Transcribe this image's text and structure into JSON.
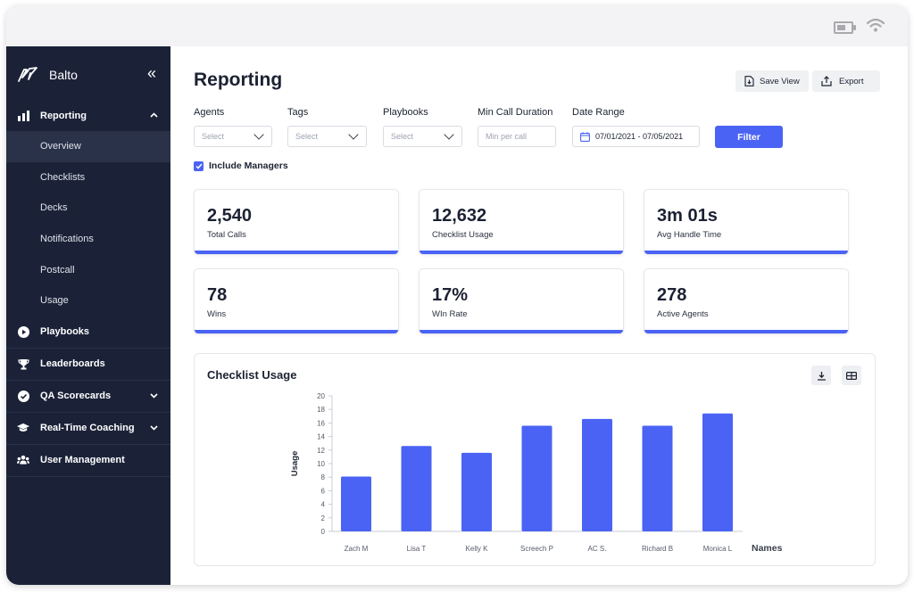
{
  "sidebar": {
    "brand": "Balto",
    "collapse_glyph": "«",
    "items": [
      {
        "label": "Reporting",
        "icon": "bar-chart-icon",
        "expanded": true
      },
      {
        "label": "Playbooks",
        "icon": "play-circle-icon"
      },
      {
        "label": "Leaderboards",
        "icon": "trophy-icon"
      },
      {
        "label": "QA Scorecards",
        "icon": "check-circle-icon",
        "has_chevron": true
      },
      {
        "label": "Real-Time Coaching",
        "icon": "graduation-cap-icon",
        "has_chevron": true
      },
      {
        "label": "User Management",
        "icon": "users-icon"
      }
    ],
    "reporting_sub": [
      "Overview",
      "Checklists",
      "Decks",
      "Notifications",
      "Postcall",
      "Usage"
    ],
    "active_sub": "Overview"
  },
  "header": {
    "title": "Reporting",
    "save_view": "Save View",
    "export": "Export"
  },
  "filters": {
    "agents_label": "Agents",
    "agents_placeholder": "Select",
    "tags_label": "Tags",
    "tags_placeholder": "Select",
    "playbooks_label": "Playbooks",
    "playbooks_placeholder": "Select",
    "min_call_label": "Min Call Duration",
    "min_call_placeholder": "Min per call",
    "date_label": "Date Range",
    "date_value": "07/01/2021 - 07/05/2021",
    "filter_button": "Filter",
    "include_managers": "Include Managers",
    "include_managers_checked": true
  },
  "stats": [
    {
      "value": "2,540",
      "label": "Total Calls"
    },
    {
      "value": "12,632",
      "label": "Checklist Usage"
    },
    {
      "value": "3m 01s",
      "label": "Avg Handle Time"
    },
    {
      "value": "78",
      "label": "Wins"
    },
    {
      "value": "17%",
      "label": "WIn Rate"
    },
    {
      "value": "278",
      "label": "Active Agents"
    }
  ],
  "accent_color": "#4a63f5",
  "sidebar_color": "#1b2238",
  "chart_card": {
    "title": "Checklist Usage"
  },
  "chart_data": {
    "type": "bar",
    "categories": [
      "Zach M",
      "Lisa T",
      "Kelly K",
      "Screech P",
      "AC S.",
      "Richard B",
      "Monica L"
    ],
    "values": [
      8.1,
      12.6,
      11.6,
      15.6,
      16.6,
      15.6,
      17.4
    ],
    "xlabel": "Names",
    "ylabel": "Usage",
    "ylim": [
      0,
      20
    ],
    "yticks": [
      0,
      2,
      4,
      6,
      8,
      10,
      12,
      14,
      16,
      18,
      20
    ],
    "color": "#4a63f5"
  }
}
